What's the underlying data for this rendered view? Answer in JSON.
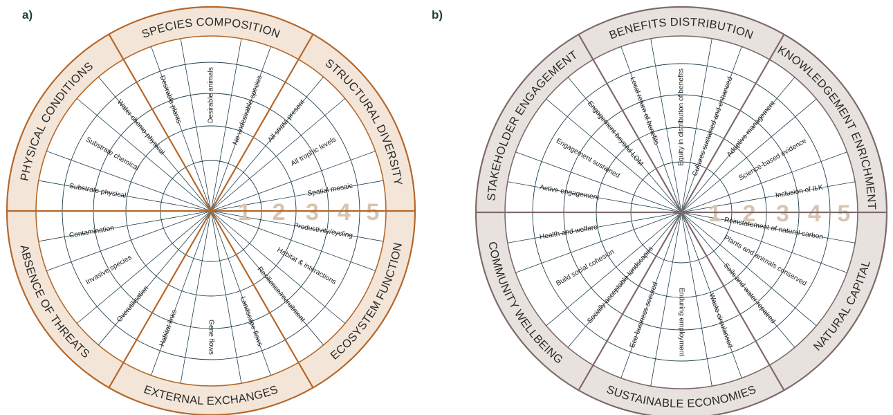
{
  "panels": [
    {
      "label": "a)",
      "colors": {
        "band": "#f3e6d8",
        "accent": "#b5672a",
        "line": "#1f3e4a"
      },
      "scale": [
        "1",
        "2",
        "3",
        "4",
        "5"
      ],
      "sectors": [
        {
          "title": "SPECIES COMPOSITION",
          "items": [
            "Desirable plants",
            "Desirable animals",
            "No undesirable species"
          ]
        },
        {
          "title": "STRUCTURAL DIVERSITY",
          "items": [
            "All strata present",
            "All trophic levels",
            "Spatial mosaic"
          ]
        },
        {
          "title": "ECOSYSTEM FUNCTION",
          "items": [
            "Productivity/cycling",
            "Habitat & interactions",
            "Resilience/recruitment"
          ]
        },
        {
          "title": "EXTERNAL EXCHANGES",
          "items": [
            "Landscape flows",
            "Gene flows",
            "Habitat links"
          ]
        },
        {
          "title": "ABSENCE OF THREATS",
          "items": [
            "Overutilisation",
            "Invasive species",
            "Contamination"
          ]
        },
        {
          "title": "PHYSICAL CONDITIONS",
          "items": [
            "Substrate physical",
            "Substrate chemical",
            "Water chemo-physical"
          ]
        }
      ]
    },
    {
      "label": "b)",
      "colors": {
        "band": "#e8e2df",
        "accent": "#7e6a6b",
        "line": "#1f3e4a"
      },
      "scale": [
        "1",
        "2",
        "3",
        "4",
        "5"
      ],
      "sectors": [
        {
          "title": "BENEFITS DISTRIBUTION",
          "items": [
            "Local return of benefits",
            "Equity in distribution of benefits",
            "Cultures sustained and enhanced"
          ]
        },
        {
          "title": "KNOWLEDGEMENT ENRICHMENT",
          "items": [
            "Adaptive management",
            "Science-based evidence",
            "Inclusion of ILK"
          ]
        },
        {
          "title": "NATURAL CAPITAL",
          "items": [
            "Reinstatement of natural carbon",
            "Plants and animals conserved",
            "Soils and water repaired"
          ]
        },
        {
          "title": "SUSTAINABLE ECONOMIES",
          "items": [
            "Waste circularised",
            "Enduring employment",
            "Eco-business secured"
          ]
        },
        {
          "title": "COMMUNITY WELLBEING",
          "items": [
            "Socially acceptable landscapes",
            "Build social cohesion",
            "Health and welfare"
          ]
        },
        {
          "title": "STAKEHOLDER ENGAGEMENT",
          "items": [
            "Active engagement",
            "Engagement sustained",
            "Engagement beyond LOM"
          ]
        }
      ]
    }
  ]
}
